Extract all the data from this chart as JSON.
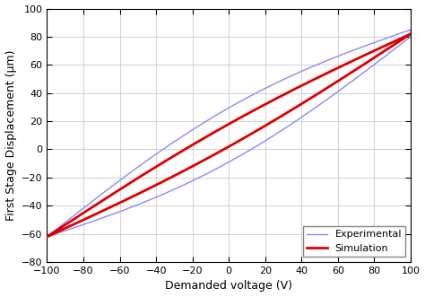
{
  "title": "",
  "xlabel": "Demanded voltage (V)",
  "ylabel": "First Stage Displacement (μm)",
  "xlim": [
    -100,
    100
  ],
  "ylim": [
    -80,
    100
  ],
  "xticks": [
    -100,
    -80,
    -60,
    -40,
    -20,
    0,
    20,
    40,
    60,
    80,
    100
  ],
  "yticks": [
    -80,
    -60,
    -40,
    -20,
    0,
    20,
    40,
    60,
    80,
    100
  ],
  "background_color": "#ffffff",
  "grid_color": "#c0c0c0",
  "exp_color": "#8888ff",
  "sim_color": "#dd0000",
  "legend_labels": [
    "Experimental",
    "Simulation"
  ],
  "exp_linewidth": 1.0,
  "sim_linewidth": 2.0,
  "tick_labelsize": 8,
  "label_fontsize": 9
}
